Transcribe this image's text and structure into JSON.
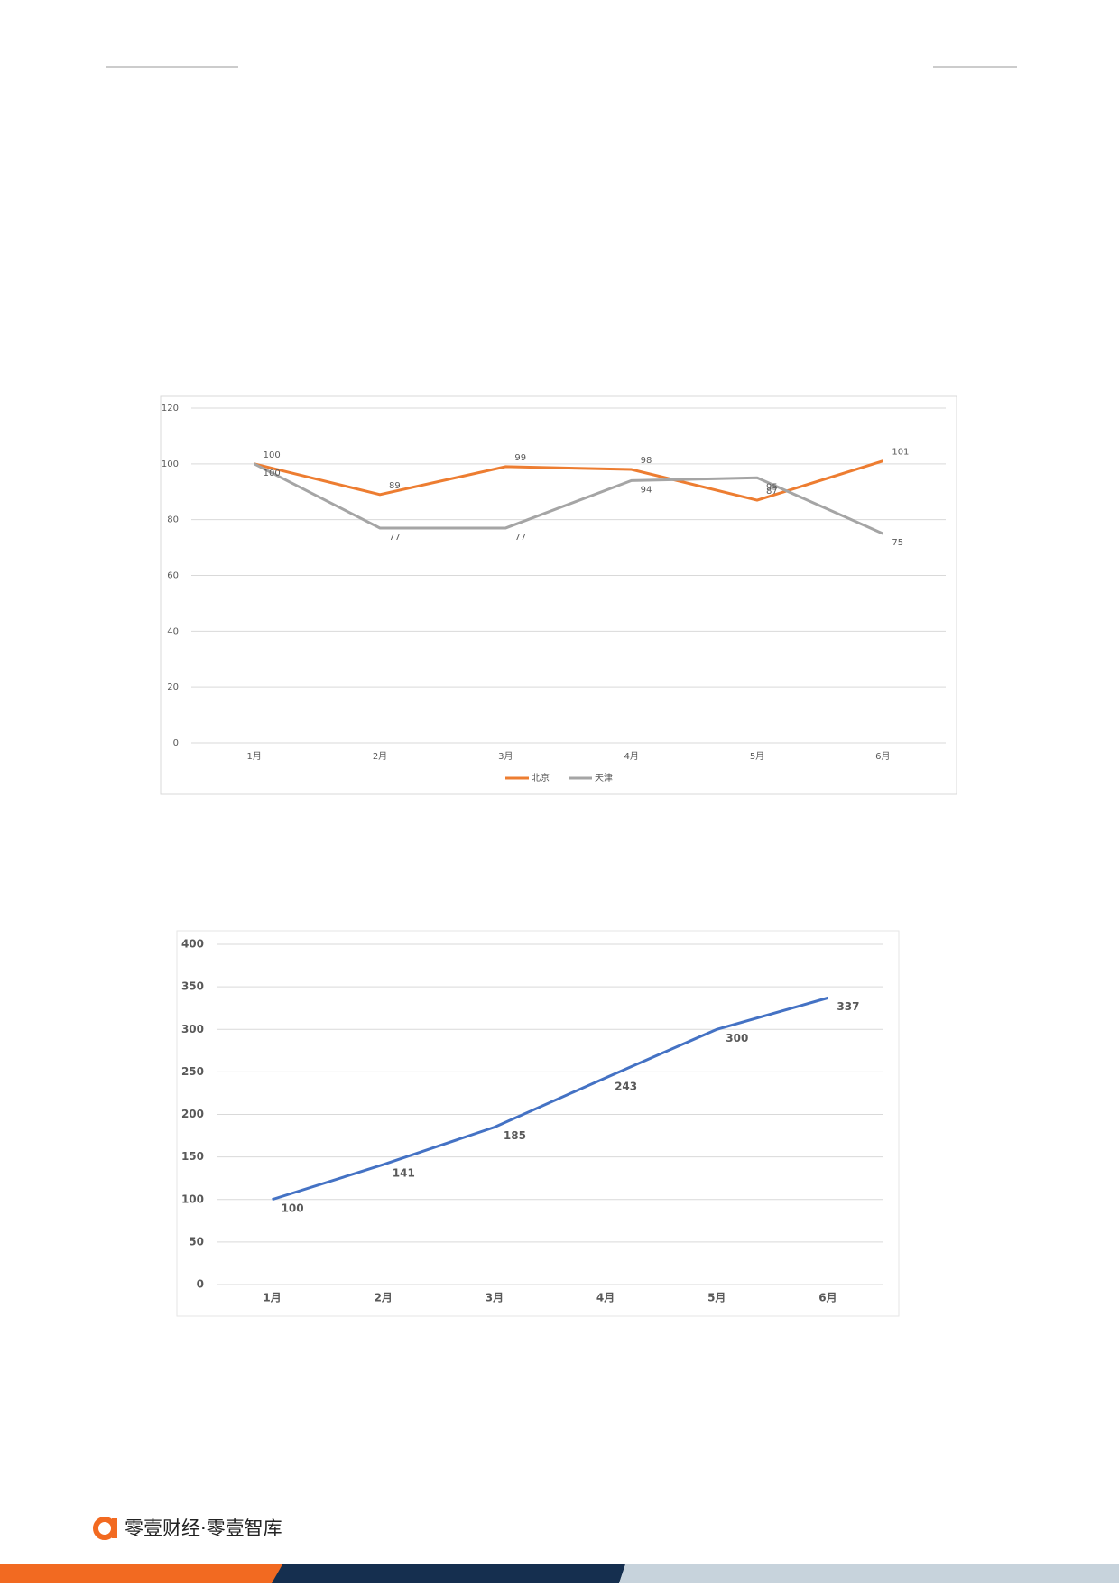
{
  "charts": [
    {
      "type": "line",
      "categories": [
        "1月",
        "2月",
        "3月",
        "4月",
        "5月",
        "6月"
      ],
      "series": [
        {
          "name": "北京",
          "color": "#ed7d31",
          "values": [
            100,
            89,
            99,
            98,
            87,
            101
          ]
        },
        {
          "name": "天津",
          "color": "#a5a5a5",
          "values": [
            100,
            77,
            77,
            94,
            95,
            75
          ]
        }
      ],
      "ylim": [
        0,
        120
      ],
      "yticks": [
        0,
        20,
        40,
        60,
        80,
        100,
        120
      ],
      "grid": true,
      "legend": "bottom"
    },
    {
      "type": "line",
      "categories": [
        "1月",
        "2月",
        "3月",
        "4月",
        "5月",
        "6月"
      ],
      "color": "#4472c4",
      "values": [
        100,
        141,
        185,
        243,
        300,
        337
      ],
      "ylim": [
        0,
        400
      ],
      "yticks": [
        0,
        50,
        100,
        150,
        200,
        250,
        300,
        350,
        400
      ],
      "grid": true
    }
  ],
  "footer": {
    "brand": "零壹财经·零壹智库"
  }
}
